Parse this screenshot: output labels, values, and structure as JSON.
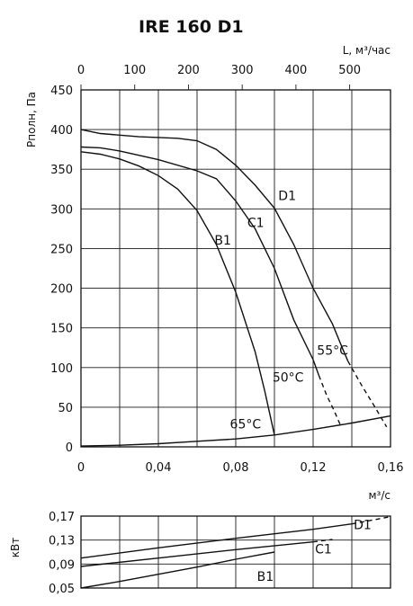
{
  "chart_data": [
    {
      "type": "line",
      "title": "IRE 160 D1",
      "ylabel": "Pполн, Па",
      "xlabel": "м³/с",
      "x_top_label": "L, м³/час",
      "xlim": [
        0,
        0.16
      ],
      "ylim": [
        0,
        450
      ],
      "x_ticks": [
        "0",
        "0,04",
        "0,08",
        "0,12",
        "0,16"
      ],
      "y_ticks": [
        "0",
        "50",
        "100",
        "150",
        "200",
        "250",
        "300",
        "350",
        "400",
        "450"
      ],
      "x_top_ticks": [
        {
          "value": 0,
          "label": "0"
        },
        {
          "value": 100,
          "label": "100"
        },
        {
          "value": 200,
          "label": "200"
        },
        {
          "value": 300,
          "label": "300"
        },
        {
          "value": 400,
          "label": "400"
        },
        {
          "value": 500,
          "label": "500"
        }
      ],
      "series": [
        {
          "name": "D1",
          "label_at": [
            0.102,
            311
          ],
          "points": [
            [
              0,
              400
            ],
            [
              0.01,
              395
            ],
            [
              0.03,
              391
            ],
            [
              0.05,
              389
            ],
            [
              0.06,
              386
            ],
            [
              0.07,
              375
            ],
            [
              0.08,
              355
            ],
            [
              0.09,
              330
            ],
            [
              0.1,
              301
            ],
            [
              0.11,
              255
            ],
            [
              0.12,
              200
            ],
            [
              0.13,
              155
            ],
            [
              0.135,
              125
            ],
            [
              0.138,
              108
            ]
          ],
          "dashed": [
            [
              0.138,
              108
            ],
            [
              0.145,
              78
            ],
            [
              0.152,
              50
            ],
            [
              0.158,
              25
            ]
          ]
        },
        {
          "name": "C1",
          "label_at": [
            0.086,
            277
          ],
          "points": [
            [
              0,
              378
            ],
            [
              0.01,
              377
            ],
            [
              0.02,
              373
            ],
            [
              0.04,
              362
            ],
            [
              0.06,
              348
            ],
            [
              0.07,
              338
            ],
            [
              0.08,
              310
            ],
            [
              0.09,
              275
            ],
            [
              0.1,
              225
            ],
            [
              0.11,
              160
            ],
            [
              0.12,
              110
            ],
            [
              0.123,
              90
            ]
          ],
          "dashed": [
            [
              0.123,
              90
            ],
            [
              0.127,
              65
            ],
            [
              0.131,
              45
            ],
            [
              0.134,
              28
            ]
          ]
        },
        {
          "name": "B1",
          "label_at": [
            0.069,
            255
          ],
          "points": [
            [
              0,
              372
            ],
            [
              0.01,
              369
            ],
            [
              0.02,
              363
            ],
            [
              0.03,
              354
            ],
            [
              0.04,
              342
            ],
            [
              0.05,
              325
            ],
            [
              0.06,
              298
            ],
            [
              0.07,
              255
            ],
            [
              0.08,
              195
            ],
            [
              0.09,
              120
            ],
            [
              0.095,
              70
            ],
            [
              0.1,
              15
            ]
          ],
          "dashed": []
        },
        {
          "name": "",
          "label_at": null,
          "points": [
            [
              0,
              1
            ],
            [
              0.02,
              2
            ],
            [
              0.04,
              4
            ],
            [
              0.06,
              7
            ],
            [
              0.08,
              10
            ],
            [
              0.1,
              15
            ],
            [
              0.12,
              22
            ],
            [
              0.14,
              30
            ],
            [
              0.16,
              39
            ]
          ],
          "dashed": []
        }
      ],
      "annotations": [
        {
          "text": "55°C",
          "at": [
            0.122,
            116
          ]
        },
        {
          "text": "50°C",
          "at": [
            0.099,
            82
          ]
        },
        {
          "text": "65°C",
          "at": [
            0.077,
            23
          ]
        }
      ]
    },
    {
      "type": "line",
      "ylabel": "кВт",
      "xlim": [
        0,
        0.16
      ],
      "ylim": [
        0.05,
        0.17
      ],
      "y_ticks": [
        "0,05",
        "0,09",
        "0,13",
        "0,17"
      ],
      "series": [
        {
          "name": "D1",
          "label_at": [
            0.141,
            0.148
          ],
          "points": [
            [
              0,
              0.1
            ],
            [
              0.04,
              0.117
            ],
            [
              0.08,
              0.133
            ],
            [
              0.12,
              0.148
            ],
            [
              0.14,
              0.157
            ]
          ],
          "dashed": [
            [
              0.14,
              0.157
            ],
            [
              0.15,
              0.163
            ],
            [
              0.16,
              0.169
            ]
          ]
        },
        {
          "name": "C1",
          "label_at": [
            0.121,
            0.108
          ],
          "points": [
            [
              0,
              0.086
            ],
            [
              0.04,
              0.1
            ],
            [
              0.08,
              0.114
            ],
            [
              0.12,
              0.127
            ]
          ],
          "dashed": [
            [
              0.12,
              0.127
            ],
            [
              0.13,
              0.131
            ]
          ]
        },
        {
          "name": "B1",
          "label_at": [
            0.091,
            0.062
          ],
          "points": [
            [
              0,
              0.05
            ],
            [
              0.02,
              0.061
            ],
            [
              0.04,
              0.073
            ],
            [
              0.06,
              0.085
            ],
            [
              0.08,
              0.098
            ],
            [
              0.1,
              0.11
            ]
          ],
          "dashed": []
        }
      ]
    }
  ]
}
